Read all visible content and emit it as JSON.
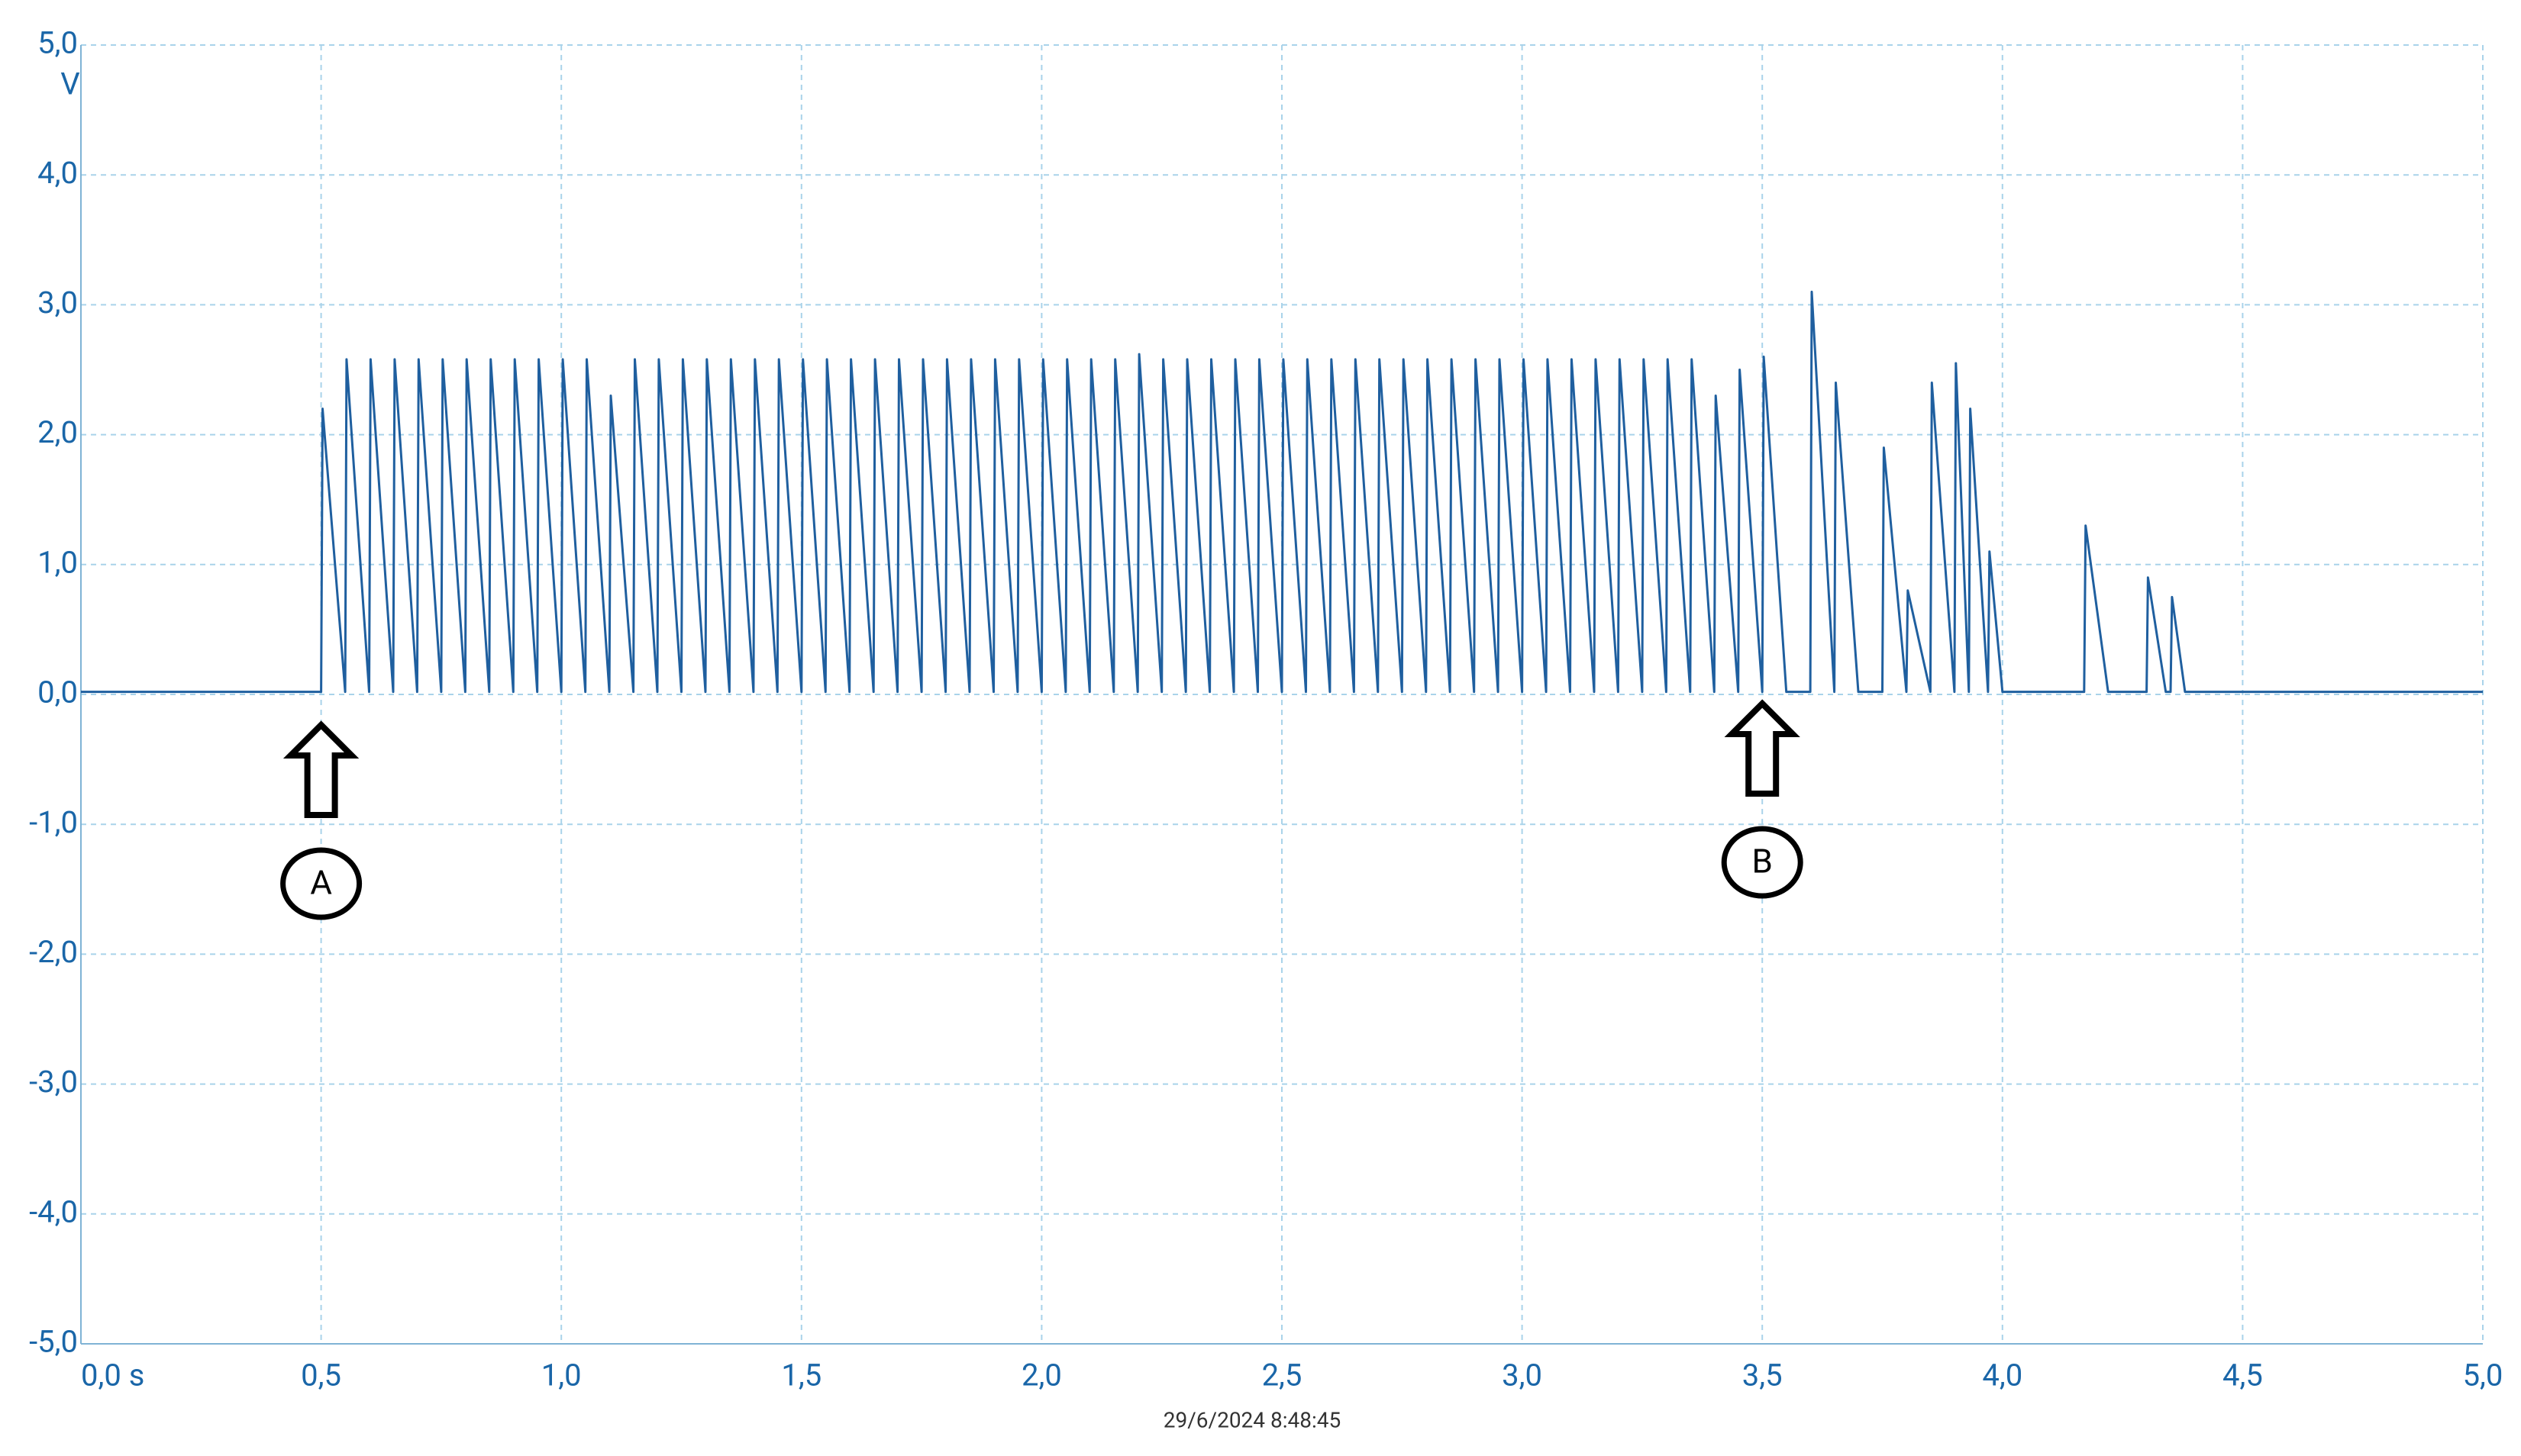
{
  "chart_data": {
    "type": "line",
    "y_unit": "V",
    "footer": "29/6/2024 8:48:45",
    "xlim": [
      0,
      5
    ],
    "ylim": [
      -5,
      5
    ],
    "xticks": [
      {
        "value": 0,
        "label": "0,0 s"
      },
      {
        "value": 0.5,
        "label": "0,5"
      },
      {
        "value": 1,
        "label": "1,0"
      },
      {
        "value": 1.5,
        "label": "1,5"
      },
      {
        "value": 2,
        "label": "2,0"
      },
      {
        "value": 2.5,
        "label": "2,5"
      },
      {
        "value": 3,
        "label": "3,0"
      },
      {
        "value": 3.5,
        "label": "3,5"
      },
      {
        "value": 4,
        "label": "4,0"
      },
      {
        "value": 4.5,
        "label": "4,5"
      },
      {
        "value": 5,
        "label": "5,0"
      }
    ],
    "yticks": [
      {
        "value": 5,
        "label": "5,0"
      },
      {
        "value": 4,
        "label": "4,0"
      },
      {
        "value": 3,
        "label": "3,0"
      },
      {
        "value": 2,
        "label": "2,0"
      },
      {
        "value": 1,
        "label": "1,0"
      },
      {
        "value": 0,
        "label": "0,0"
      },
      {
        "value": -1,
        "label": "-1,0"
      },
      {
        "value": -2,
        "label": "-2,0"
      },
      {
        "value": -3,
        "label": "-3,0"
      },
      {
        "value": -4,
        "label": "-4,0"
      },
      {
        "value": -5,
        "label": "-5,0"
      }
    ],
    "grid": true,
    "annotations": [
      {
        "text": "A",
        "x": 0.5
      },
      {
        "text": "B",
        "x": 3.5
      }
    ],
    "x": [
      0,
      0.5,
      0.503,
      0.55,
      0.553,
      0.6,
      0.603,
      0.65,
      0.653,
      0.7,
      0.703,
      0.75,
      0.753,
      0.8,
      0.803,
      0.85,
      0.853,
      0.9,
      0.903,
      0.95,
      0.953,
      1.0,
      1.003,
      1.05,
      1.053,
      1.1,
      1.103,
      1.15,
      1.153,
      1.2,
      1.203,
      1.25,
      1.253,
      1.3,
      1.303,
      1.35,
      1.353,
      1.4,
      1.403,
      1.45,
      1.453,
      1.5,
      1.503,
      1.55,
      1.553,
      1.6,
      1.603,
      1.65,
      1.653,
      1.7,
      1.703,
      1.75,
      1.753,
      1.8,
      1.803,
      1.85,
      1.853,
      1.9,
      1.903,
      1.95,
      1.953,
      2.0,
      2.003,
      2.05,
      2.053,
      2.1,
      2.103,
      2.15,
      2.153,
      2.2,
      2.203,
      2.25,
      2.253,
      2.3,
      2.303,
      2.35,
      2.353,
      2.4,
      2.403,
      2.45,
      2.453,
      2.5,
      2.503,
      2.55,
      2.553,
      2.6,
      2.603,
      2.65,
      2.653,
      2.7,
      2.703,
      2.75,
      2.753,
      2.8,
      2.803,
      2.85,
      2.853,
      2.9,
      2.903,
      2.95,
      2.953,
      3.0,
      3.003,
      3.05,
      3.053,
      3.1,
      3.103,
      3.15,
      3.153,
      3.2,
      3.203,
      3.25,
      3.253,
      3.3,
      3.303,
      3.35,
      3.353,
      3.4,
      3.403,
      3.45,
      3.453,
      3.5,
      3.503,
      3.55,
      3.6,
      3.603,
      3.65,
      3.653,
      3.7,
      3.75,
      3.753,
      3.8,
      3.803,
      3.85,
      3.853,
      3.9,
      3.903,
      3.93,
      3.933,
      3.97,
      3.973,
      4.0,
      4.17,
      4.173,
      4.22,
      4.3,
      4.303,
      4.34,
      4.35,
      4.353,
      4.38,
      5.0
    ],
    "series": [
      {
        "color": "#1f5f9f",
        "values": [
          0.02,
          0.02,
          2.2,
          0.02,
          2.58,
          0.02,
          2.58,
          0.02,
          2.58,
          0.02,
          2.58,
          0.02,
          2.58,
          0.02,
          2.58,
          0.02,
          2.58,
          0.02,
          2.58,
          0.02,
          2.58,
          0.02,
          2.58,
          0.02,
          2.58,
          0.02,
          2.3,
          0.02,
          2.58,
          0.02,
          2.58,
          0.02,
          2.58,
          0.02,
          2.58,
          0.02,
          2.58,
          0.02,
          2.58,
          0.02,
          2.58,
          0.02,
          2.58,
          0.02,
          2.58,
          0.02,
          2.58,
          0.02,
          2.58,
          0.02,
          2.58,
          0.02,
          2.58,
          0.02,
          2.58,
          0.02,
          2.58,
          0.02,
          2.58,
          0.02,
          2.58,
          0.02,
          2.58,
          0.02,
          2.58,
          0.02,
          2.58,
          0.02,
          2.58,
          0.02,
          2.62,
          0.02,
          2.58,
          0.02,
          2.58,
          0.02,
          2.58,
          0.02,
          2.58,
          0.02,
          2.58,
          0.02,
          2.58,
          0.02,
          2.58,
          0.02,
          2.58,
          0.02,
          2.58,
          0.02,
          2.58,
          0.02,
          2.58,
          0.02,
          2.58,
          0.02,
          2.58,
          0.02,
          2.58,
          0.02,
          2.58,
          0.02,
          2.58,
          0.02,
          2.58,
          0.02,
          2.58,
          0.02,
          2.58,
          0.02,
          2.58,
          0.02,
          2.58,
          0.02,
          2.58,
          0.02,
          2.58,
          0.02,
          2.3,
          0.02,
          2.5,
          0.02,
          2.6,
          0.02,
          0.02,
          3.1,
          0.02,
          2.4,
          0.02,
          0.02,
          1.9,
          0.02,
          0.8,
          0.02,
          2.4,
          0.02,
          2.55,
          0.02,
          2.2,
          0.02,
          1.1,
          0.02,
          0.02,
          1.3,
          0.02,
          0.02,
          0.9,
          0.02,
          0.02,
          0.75,
          0.02,
          0.02
        ]
      }
    ]
  }
}
